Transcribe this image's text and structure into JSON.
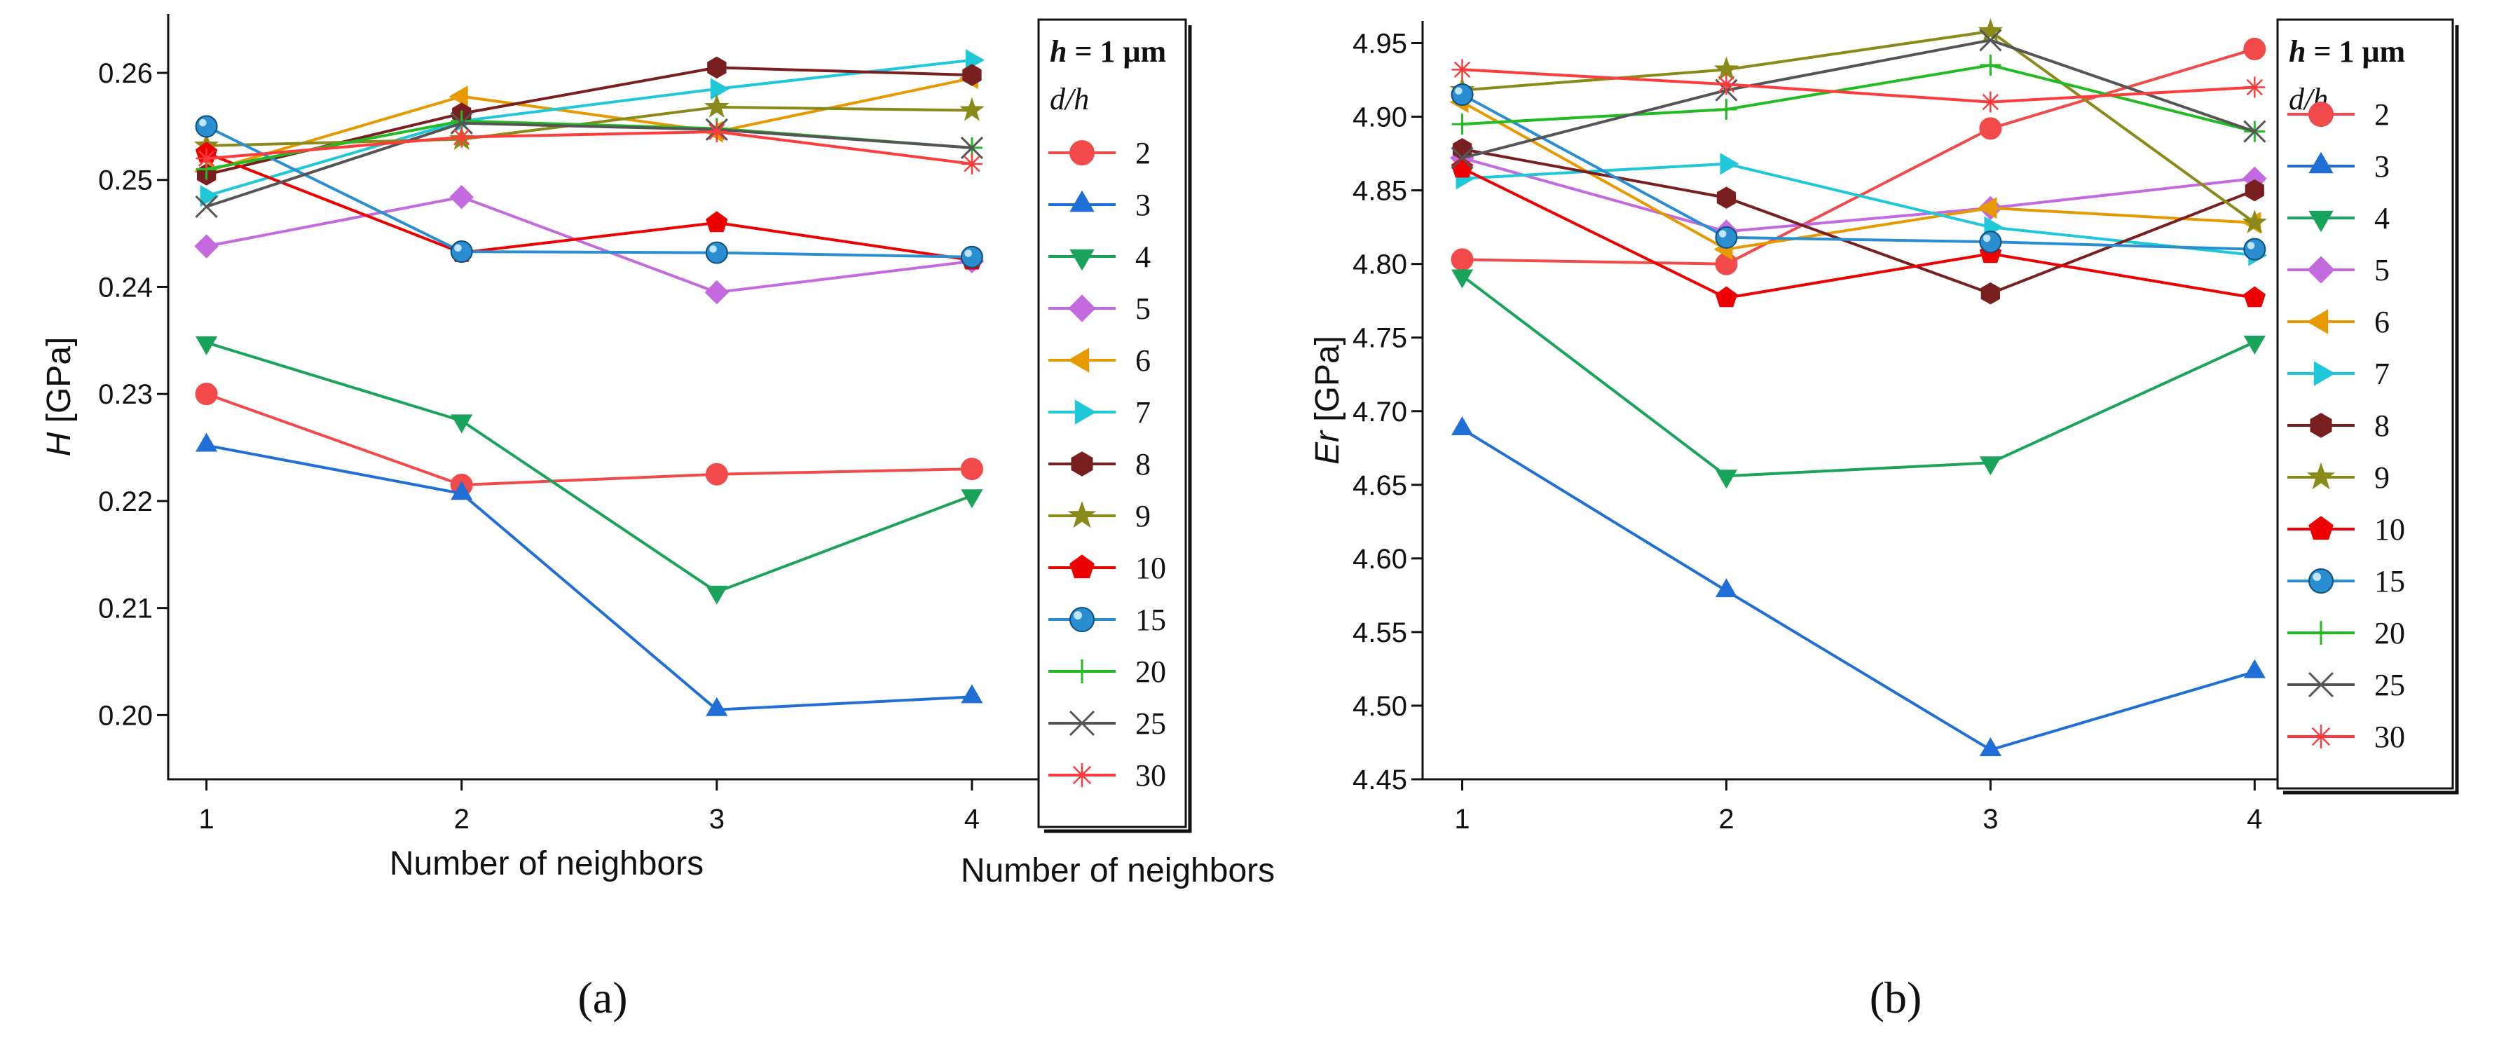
{
  "figure": {
    "panel_labels": [
      "(a)",
      "(b)"
    ]
  },
  "legend": {
    "title_main": "h = 1 μm",
    "title_h": "h",
    "title_unit": "= 1 μm",
    "subtitle": "d/h"
  },
  "series_style": {
    "2": {
      "color": "#f24a4a",
      "marker": "circle"
    },
    "3": {
      "color": "#1f6fd6",
      "marker": "triangle-up"
    },
    "4": {
      "color": "#1aa35a",
      "marker": "triangle-down"
    },
    "5": {
      "color": "#c36ae0",
      "marker": "diamond"
    },
    "6": {
      "color": "#e69a00",
      "marker": "triangle-left"
    },
    "7": {
      "color": "#1ec8d8",
      "marker": "triangle-right"
    },
    "8": {
      "color": "#7a1f1f",
      "marker": "hexagon"
    },
    "9": {
      "color": "#8a8a1a",
      "marker": "star"
    },
    "10": {
      "color": "#ee0000",
      "marker": "pentagon"
    },
    "15": {
      "color": "#2a8ed0",
      "marker": "sphere"
    },
    "20": {
      "color": "#22bb22",
      "marker": "plus"
    },
    "25": {
      "color": "#555555",
      "marker": "x"
    },
    "30": {
      "color": "#ff3b3b",
      "marker": "asterisk"
    }
  },
  "chart_data": [
    {
      "type": "line",
      "panel": "(a)",
      "xlabel": "Number of neighbors",
      "ylabel_var": "H",
      "ylabel_unit": " [GPa]",
      "x": [
        1,
        2,
        3,
        4
      ],
      "xlim": [
        0.85,
        4.75
      ],
      "ylim": [
        0.194,
        0.2655
      ],
      "xticks": [
        "1",
        "2",
        "3",
        "4"
      ],
      "yticks": [
        "0.20",
        "0.21",
        "0.22",
        "0.23",
        "0.24",
        "0.25",
        "0.26"
      ],
      "legend_title": "h = 1 μm",
      "legend_subtitle": "d/h",
      "series": [
        {
          "name": "2",
          "values": [
            0.23,
            0.2215,
            0.2225,
            0.223
          ]
        },
        {
          "name": "3",
          "values": [
            0.2252,
            0.2207,
            0.2005,
            0.2017
          ]
        },
        {
          "name": "4",
          "values": [
            0.2348,
            0.2275,
            0.2115,
            0.2205
          ]
        },
        {
          "name": "5",
          "values": [
            0.2438,
            0.2484,
            0.2395,
            0.2424
          ]
        },
        {
          "name": "6",
          "values": [
            0.2508,
            0.2578,
            0.2545,
            0.2595
          ]
        },
        {
          "name": "7",
          "values": [
            0.2485,
            0.2555,
            0.2585,
            0.2612
          ]
        },
        {
          "name": "8",
          "values": [
            0.2505,
            0.2562,
            0.2605,
            0.2598
          ]
        },
        {
          "name": "9",
          "values": [
            0.2532,
            0.2538,
            0.2568,
            0.2565
          ]
        },
        {
          "name": "10",
          "values": [
            0.2525,
            0.2432,
            0.246,
            0.2425
          ]
        },
        {
          "name": "15",
          "values": [
            0.255,
            0.2433,
            0.2432,
            0.2428
          ]
        },
        {
          "name": "20",
          "values": [
            0.251,
            0.2555,
            0.2548,
            0.253
          ]
        },
        {
          "name": "25",
          "values": [
            0.2475,
            0.2553,
            0.2547,
            0.253
          ]
        },
        {
          "name": "30",
          "values": [
            0.252,
            0.254,
            0.2545,
            0.2515
          ]
        }
      ]
    },
    {
      "type": "line",
      "panel": "(b)",
      "xlabel": "Number of neighbors",
      "ylabel_var": "Er",
      "ylabel_unit": " [GPa]",
      "x": [
        1,
        2,
        3,
        4
      ],
      "xlim": [
        0.85,
        4.75
      ],
      "ylim": [
        4.45,
        4.965
      ],
      "xticks": [
        "1",
        "2",
        "3",
        "4"
      ],
      "yticks": [
        "4.45",
        "4.50",
        "4.55",
        "4.60",
        "4.65",
        "4.70",
        "4.75",
        "4.80",
        "4.85",
        "4.90",
        "4.95"
      ],
      "legend_title": "h = 1 μm",
      "legend_subtitle": "d/h",
      "series": [
        {
          "name": "2",
          "values": [
            4.803,
            4.8,
            4.892,
            4.946
          ]
        },
        {
          "name": "3",
          "values": [
            4.688,
            4.578,
            4.47,
            4.523
          ]
        },
        {
          "name": "4",
          "values": [
            4.792,
            4.656,
            4.665,
            4.747
          ]
        },
        {
          "name": "5",
          "values": [
            4.872,
            4.822,
            4.838,
            4.858
          ]
        },
        {
          "name": "6",
          "values": [
            4.91,
            4.81,
            4.838,
            4.828
          ]
        },
        {
          "name": "7",
          "values": [
            4.858,
            4.868,
            4.825,
            4.806
          ]
        },
        {
          "name": "8",
          "values": [
            4.878,
            4.845,
            4.78,
            4.85
          ]
        },
        {
          "name": "9",
          "values": [
            4.918,
            4.932,
            4.958,
            4.828
          ]
        },
        {
          "name": "10",
          "values": [
            4.865,
            4.777,
            4.807,
            4.777
          ]
        },
        {
          "name": "15",
          "values": [
            4.915,
            4.818,
            4.815,
            4.81
          ]
        },
        {
          "name": "20",
          "values": [
            4.895,
            4.905,
            4.935,
            4.89
          ]
        },
        {
          "name": "25",
          "values": [
            4.872,
            4.918,
            4.952,
            4.89
          ]
        },
        {
          "name": "30",
          "values": [
            4.932,
            4.922,
            4.91,
            4.92
          ]
        }
      ]
    }
  ]
}
